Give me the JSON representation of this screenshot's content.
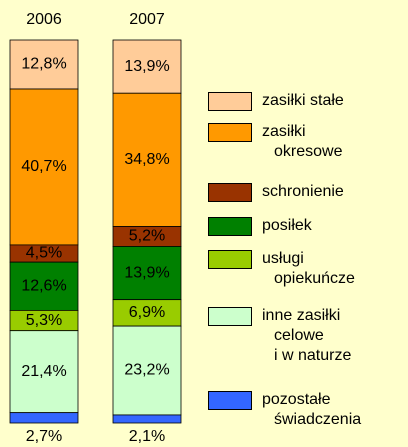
{
  "chart_data": {
    "type": "stacked_bar_100",
    "categories": [
      "2006",
      "2007"
    ],
    "series": [
      {
        "name": "zasiłki stałe",
        "color": "#FFCC99",
        "values": [
          12.8,
          13.9
        ],
        "value_labels": [
          "12,8%",
          "13,9%"
        ]
      },
      {
        "name": "zasiłki\nokresowe",
        "color": "#FF9900",
        "values": [
          40.7,
          34.8
        ],
        "value_labels": [
          "40,7%",
          "34,8%"
        ]
      },
      {
        "name": "schronienie",
        "color": "#993300",
        "values": [
          4.5,
          5.2
        ],
        "value_labels": [
          "4,5%",
          "5,2%"
        ]
      },
      {
        "name": "posiłek",
        "color": "#008000",
        "values": [
          12.6,
          13.9
        ],
        "value_labels": [
          "12,6%",
          "13,9%"
        ]
      },
      {
        "name": "usługi\nopiekuńcze",
        "color": "#99CC00",
        "values": [
          5.3,
          6.9
        ],
        "value_labels": [
          "5,3%",
          "6,9%"
        ]
      },
      {
        "name": "inne zasiłki\ncelowe\ni w naturze",
        "color": "#CCFFCC",
        "values": [
          21.4,
          23.2
        ],
        "value_labels": [
          "21,4%",
          "23,2%"
        ]
      },
      {
        "name": "pozostałe\nświadczenia",
        "color": "#3366FF",
        "values": [
          2.7,
          2.1
        ],
        "value_labels": [
          "2,7%",
          "2,1%"
        ]
      }
    ],
    "ylim": [
      0,
      100
    ]
  }
}
